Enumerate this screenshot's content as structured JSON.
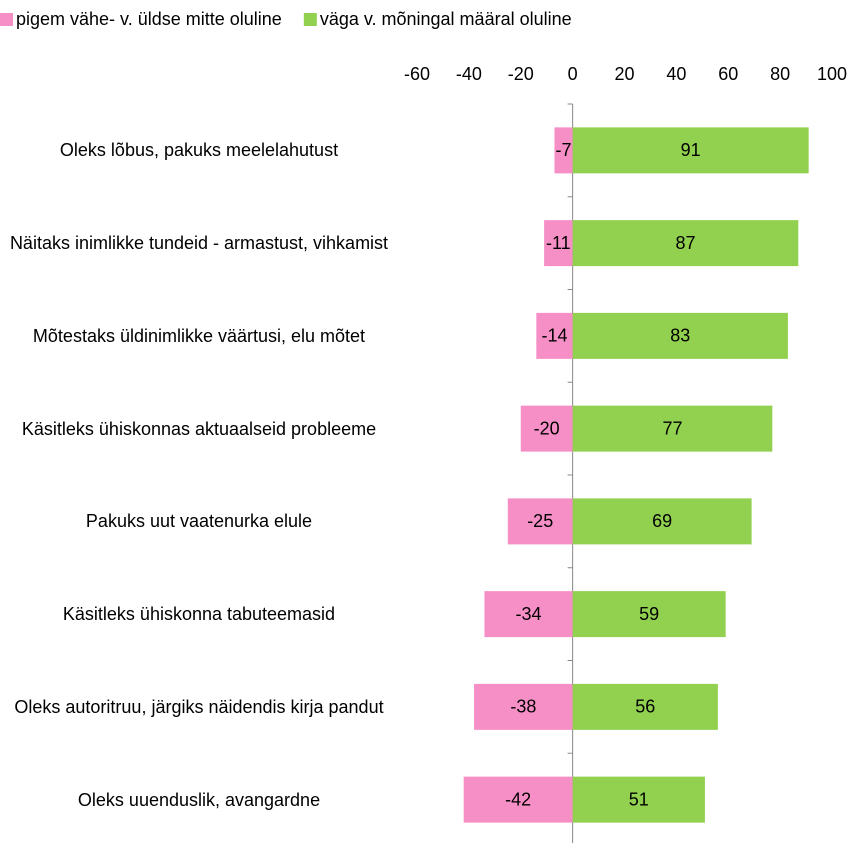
{
  "chart_data": {
    "type": "bar",
    "orientation": "horizontal",
    "stacked": "diverging",
    "categories": [
      "Oleks lõbus, pakuks meelelahutust",
      "Näitaks inimlikke tundeid - armastust, vihkamist",
      "Mõtestaks üldinimlikke väärtusi, elu mõtet",
      "Käsitleks ühiskonnas aktuaalseid probleeme",
      "Pakuks uut vaatenurka elule",
      "Käsitleks ühiskonna tabuteemasid",
      "Oleks autoritruu, järgiks näidendis kirja pandut",
      "Oleks uuenduslik, avangardne"
    ],
    "series": [
      {
        "name": "pigem vähe- v. üldse mitte oluline",
        "color": "#f68fc6",
        "values": [
          -7,
          -11,
          -14,
          -20,
          -25,
          -34,
          -38,
          -42
        ]
      },
      {
        "name": "väga v. mõningal määral oluline",
        "color": "#92d050",
        "values": [
          91,
          87,
          83,
          77,
          69,
          59,
          56,
          51
        ]
      }
    ],
    "xlim": [
      -60,
      100
    ],
    "xticks": [
      -60,
      -40,
      -20,
      0,
      20,
      40,
      60,
      80,
      100
    ],
    "legend": "top"
  }
}
